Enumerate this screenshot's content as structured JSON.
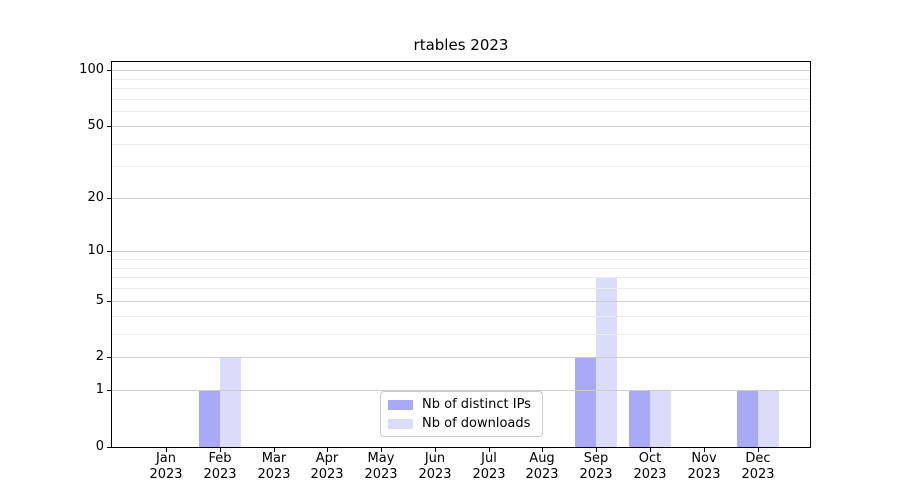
{
  "title": "rtables 2023",
  "legend": {
    "position": "lower center",
    "items": [
      {
        "label": "Nb of distinct IPs",
        "color": "#a9a9f7"
      },
      {
        "label": "Nb of downloads",
        "color": "#dbdbfa"
      }
    ]
  },
  "colors": {
    "distinct_ips_bar": "#a9a9f7",
    "downloads_bar": "#dbdbfa",
    "major_grid": "#cccccc",
    "minor_grid": "#ebebeb",
    "axis": "#000000"
  },
  "chart_data": {
    "type": "bar",
    "title": "rtables 2023",
    "categories": [
      "Jan",
      "Feb",
      "Mar",
      "Apr",
      "May",
      "Jun",
      "Jul",
      "Aug",
      "Sep",
      "Oct",
      "Nov",
      "Dec"
    ],
    "x_year_label": "2023",
    "series": [
      {
        "name": "Nb of distinct IPs",
        "color": "#a9a9f7",
        "values": [
          0,
          1,
          0,
          0,
          0,
          0,
          0,
          0,
          2,
          1,
          0,
          1
        ]
      },
      {
        "name": "Nb of downloads",
        "color": "#dbdbfa",
        "values": [
          0,
          2,
          0,
          0,
          0,
          0,
          0,
          0,
          7,
          1,
          0,
          1
        ]
      }
    ],
    "xlabel": "",
    "ylabel": "",
    "yscale": "log1p",
    "yticks": [
      0,
      1,
      2,
      5,
      10,
      20,
      50,
      100
    ],
    "minor_gridlines": [
      3,
      4,
      6,
      7,
      8,
      9,
      30,
      40,
      60,
      70,
      80,
      90
    ],
    "ylim": [
      0,
      111
    ],
    "grid": true,
    "legend_position": "lower center"
  }
}
